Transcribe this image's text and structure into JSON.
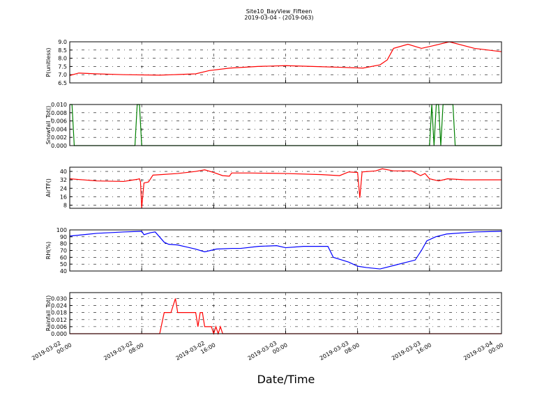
{
  "chart_data": [
    {
      "type": "line",
      "title": "Site10_BayView_Fifteen",
      "subtitle": "2019-03-04 - (2019-063)",
      "ylabel": "P(unitless)",
      "color": "#ff0000",
      "x": [
        "2019-03-02 00:00",
        "2019-03-02 01:00",
        "2019-03-02 03:00",
        "2019-03-02 06:00",
        "2019-03-02 10:00",
        "2019-03-02 11:36",
        "2019-03-02 14:00",
        "2019-03-02 15:30",
        "2019-03-02 17:48",
        "2019-03-02 20:54",
        "2019-03-03 00:00",
        "2019-03-03 03:00",
        "2019-03-03 06:00",
        "2019-03-03 08:36",
        "2019-03-03 10:30",
        "2019-03-03 11:18",
        "2019-03-03 12:00",
        "2019-03-03 13:36",
        "2019-03-03 15:06",
        "2019-03-03 16:18",
        "2019-03-03 18:12",
        "2019-03-03 21:00",
        "2019-03-04 00:00"
      ],
      "values": [
        6.95,
        7.1,
        7.05,
        7.0,
        6.97,
        7.0,
        7.05,
        7.25,
        7.4,
        7.5,
        7.55,
        7.5,
        7.45,
        7.4,
        7.6,
        7.9,
        8.6,
        8.85,
        8.6,
        8.75,
        9.0,
        8.6,
        8.4
      ],
      "ylim": [
        6.5,
        9.0
      ],
      "yticks": [
        6.5,
        {
          "value": 7.0,
          "label": "7.0"
        },
        7.5,
        {
          "value": 8.0,
          "label": "8.0"
        },
        8.5,
        {
          "value": 9.0,
          "label": "9.0"
        }
      ],
      "grid": true
    },
    {
      "type": "line",
      "ylabel": "Snowfall_Tot()",
      "color": "#007f00",
      "x": [
        "2019-03-02 00:00",
        "2019-03-02 00:15",
        "2019-03-02 00:30",
        "2019-03-02 07:15",
        "2019-03-02 07:30",
        "2019-03-02 07:45",
        "2019-03-02 08:00",
        "2019-03-03 16:00",
        "2019-03-03 16:15",
        "2019-03-03 16:30",
        "2019-03-03 16:45",
        "2019-03-03 17:00",
        "2019-03-03 17:15",
        "2019-03-03 17:30",
        "2019-03-03 18:36",
        "2019-03-03 18:51",
        "2019-03-04 00:00"
      ],
      "values": [
        0.01,
        0.01,
        0,
        0,
        0.01,
        0.01,
        0,
        0,
        0.01,
        0,
        0.01,
        0.01,
        0,
        0.01,
        0.01,
        0,
        0
      ],
      "ylim": [
        0,
        0.01
      ],
      "yticks": [
        {
          "value": 0,
          "label": "0.000"
        },
        {
          "value": 0.002,
          "label": "0.002"
        },
        {
          "value": 0.004,
          "label": "0.004"
        },
        {
          "value": 0.006,
          "label": "0.006"
        },
        {
          "value": 0.008,
          "label": "0.008"
        },
        {
          "value": 0.01,
          "label": "0.010"
        }
      ],
      "grid": true
    },
    {
      "type": "line",
      "ylabel": "AirTF()",
      "color": "#ff0000",
      "x": [
        "2019-03-02 00:00",
        "2019-03-02 03:00",
        "2019-03-02 06:00",
        "2019-03-02 07:30",
        "2019-03-02 07:45",
        "2019-03-02 07:52",
        "2019-03-02 08:00",
        "2019-03-02 08:15",
        "2019-03-02 08:45",
        "2019-03-02 09:15",
        "2019-03-02 12:00",
        "2019-03-02 14:00",
        "2019-03-02 15:00",
        "2019-03-02 16:00",
        "2019-03-02 17:00",
        "2019-03-02 17:45",
        "2019-03-02 18:00",
        "2019-03-02 20:00",
        "2019-03-03 00:00",
        "2019-03-03 04:00",
        "2019-03-03 06:00",
        "2019-03-03 07:00",
        "2019-03-03 08:00",
        "2019-03-03 08:15",
        "2019-03-03 08:30",
        "2019-03-03 10:00",
        "2019-03-03 10:45",
        "2019-03-03 12:00",
        "2019-03-03 14:00",
        "2019-03-03 15:00",
        "2019-03-03 15:30",
        "2019-03-03 16:00",
        "2019-03-03 17:00",
        "2019-03-03 18:00",
        "2019-03-03 20:00",
        "2019-03-04 00:00"
      ],
      "values": [
        33,
        31,
        30.5,
        32.5,
        33,
        30,
        5.5,
        29,
        30,
        36.5,
        38,
        40,
        41.5,
        39,
        36,
        35.5,
        38.5,
        38.5,
        38,
        37,
        36,
        39.5,
        39,
        15,
        39.5,
        40.5,
        42.5,
        40.5,
        40.5,
        36,
        38,
        33,
        31,
        33,
        32,
        32
      ],
      "ylim": [
        5,
        44
      ],
      "yticks": [
        8,
        16,
        24,
        32,
        40
      ],
      "grid": true
    },
    {
      "type": "line",
      "ylabel": "RH(%)",
      "color": "#0000ff",
      "x": [
        "2019-03-02 00:00",
        "2019-03-02 03:00",
        "2019-03-02 06:00",
        "2019-03-02 08:00",
        "2019-03-02 08:15",
        "2019-03-02 09:00",
        "2019-03-02 09:30",
        "2019-03-02 10:30",
        "2019-03-02 11:00",
        "2019-03-02 12:00",
        "2019-03-02 13:00",
        "2019-03-02 14:00",
        "2019-03-02 15:00",
        "2019-03-02 16:18",
        "2019-03-02 18:00",
        "2019-03-02 19:00",
        "2019-03-02 21:00",
        "2019-03-02 23:00",
        "2019-03-03 00:00",
        "2019-03-03 02:00",
        "2019-03-03 04:00",
        "2019-03-03 04:42",
        "2019-03-03 05:18",
        "2019-03-03 07:00",
        "2019-03-03 08:00",
        "2019-03-03 09:00",
        "2019-03-03 10:30",
        "2019-03-03 12:00",
        "2019-03-03 13:12",
        "2019-03-03 14:24",
        "2019-03-03 15:06",
        "2019-03-03 15:42",
        "2019-03-03 16:42",
        "2019-03-03 17:54",
        "2019-03-03 21:00",
        "2019-03-04 00:00"
      ],
      "values": [
        91,
        95,
        97,
        98,
        93,
        96,
        97,
        82,
        79,
        78,
        75,
        72,
        68,
        72,
        73,
        73,
        76,
        77,
        74,
        76,
        76,
        76,
        60,
        53,
        47,
        45,
        43,
        48,
        52,
        56,
        70,
        84,
        90,
        94,
        97,
        98
      ],
      "ylim": [
        40,
        100
      ],
      "yticks": [
        40,
        50,
        60,
        70,
        80,
        90,
        100
      ],
      "grid": true
    },
    {
      "type": "line",
      "ylabel": "Rainfall_Tot()",
      "xlabel": "Date/Time",
      "color": "#ff0000",
      "x": [
        "2019-03-02 00:00",
        "2019-03-02 10:00",
        "2019-03-02 10:30",
        "2019-03-02 11:15",
        "2019-03-02 11:45",
        "2019-03-02 12:00",
        "2019-03-02 14:00",
        "2019-03-02 14:15",
        "2019-03-02 14:30",
        "2019-03-02 14:45",
        "2019-03-02 15:00",
        "2019-03-02 15:45",
        "2019-03-02 16:00",
        "2019-03-02 16:15",
        "2019-03-02 16:30",
        "2019-03-02 16:45",
        "2019-03-02 17:00",
        "2019-03-04 00:00"
      ],
      "values": [
        0,
        0,
        0.018,
        0.018,
        0.03,
        0.018,
        0.018,
        0.006,
        0.018,
        0.018,
        0.006,
        0.006,
        0,
        0.006,
        0,
        0.006,
        0,
        0
      ],
      "ylim": [
        0,
        0.035
      ],
      "yticks": [
        {
          "value": 0,
          "label": "0.000"
        },
        {
          "value": 0.006,
          "label": "0.006"
        },
        {
          "value": 0.012,
          "label": "0.012"
        },
        {
          "value": 0.018,
          "label": "0.018"
        },
        {
          "value": 0.024,
          "label": "0.024"
        },
        {
          "value": 0.03,
          "label": "0.030"
        }
      ],
      "xlim": [
        "2019-03-02 00:00",
        "2019-03-04 00:00"
      ],
      "xticks": [
        "2019-03-02 00:00",
        "2019-03-02 08:00",
        "2019-03-02 16:00",
        "2019-03-03 00:00",
        "2019-03-03 08:00",
        "2019-03-03 16:00",
        "2019-03-04 00:00"
      ],
      "grid": true
    }
  ]
}
